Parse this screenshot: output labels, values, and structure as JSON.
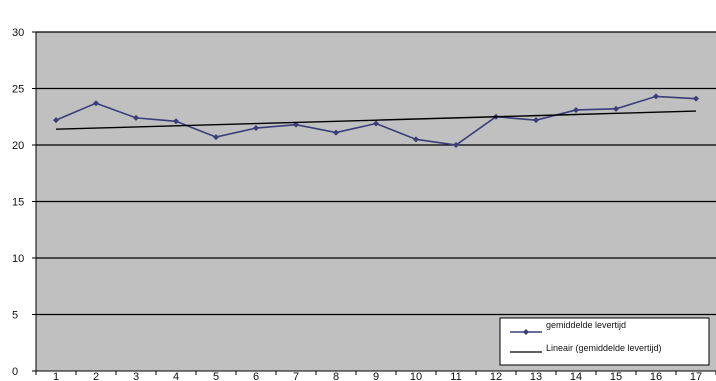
{
  "chart_data": {
    "type": "line",
    "title": "",
    "xlabel": "",
    "ylabel": "",
    "x": [
      "1",
      "2",
      "3",
      "4",
      "5",
      "6",
      "7",
      "8",
      "9",
      "10",
      "11",
      "12",
      "13",
      "14",
      "15",
      "16",
      "17"
    ],
    "ylim": [
      0,
      30
    ],
    "yticks": [
      "0",
      "5",
      "10",
      "15",
      "20",
      "25",
      "30"
    ],
    "grid": true,
    "legend_position": "bottom-right",
    "series": [
      {
        "name": "gemiddelde levertijd",
        "values": [
          22.2,
          23.7,
          22.4,
          22.1,
          20.7,
          21.5,
          21.8,
          21.1,
          21.9,
          20.5,
          20.0,
          22.5,
          22.2,
          23.1,
          23.2,
          24.3,
          24.1
        ],
        "color": "#3c3c78",
        "marker": "diamond"
      },
      {
        "name": "Lineair (gemiddelde levertijd)",
        "values": [
          21.4,
          21.5,
          21.6,
          21.7,
          21.8,
          21.9,
          22.0,
          22.1,
          22.2,
          22.3,
          22.4,
          22.5,
          22.6,
          22.7,
          22.8,
          22.9,
          23.0
        ],
        "color": "#000000",
        "marker": "none"
      }
    ],
    "colors": {
      "plot_background": "#c0c0c0",
      "gridline": "#000000"
    }
  }
}
